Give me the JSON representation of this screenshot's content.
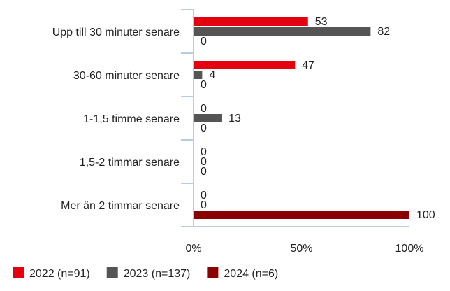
{
  "chart_data": {
    "type": "bar",
    "orientation": "horizontal",
    "categories": [
      "Upp till 30 minuter senare",
      "30-60 minuter senare",
      "1-1,5 timme senare",
      "1,5-2 timmar senare",
      "Mer än 2 timmar senare"
    ],
    "series": [
      {
        "name": "2022 (n=91)",
        "color": "#e3000f",
        "values": [
          53,
          47,
          0,
          0,
          0
        ]
      },
      {
        "name": "2023 (n=137)",
        "color": "#555555",
        "values": [
          82,
          4,
          13,
          0,
          0
        ]
      },
      {
        "name": "2024 (n=6)",
        "color": "#8b0000",
        "values": [
          0,
          0,
          0,
          0,
          100
        ]
      }
    ],
    "x_ticks": [
      "0%",
      "50%",
      "100%"
    ],
    "xlim": [
      0,
      100
    ],
    "legend_position": "bottom-left",
    "grid": false,
    "axis_color": "#b8cce4"
  }
}
